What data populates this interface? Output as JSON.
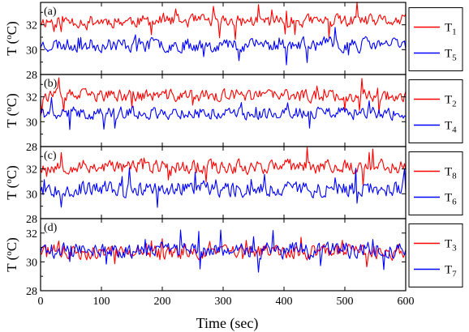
{
  "chart_data": {
    "type": "line",
    "xlabel": "Time (sec)",
    "x_ticks": [
      0,
      100,
      200,
      300,
      400,
      500,
      600
    ],
    "xlim": [
      0,
      600
    ],
    "x_step": 2,
    "grid": false,
    "legend_placement": "right",
    "panels": [
      {
        "label": "(a)",
        "ylabel_main": "T (",
        "ylabel_sup": "o",
        "ylabel_end": "C)",
        "ylim": [
          28,
          33.8
        ],
        "y_ticks": [
          28,
          30,
          32
        ],
        "series": [
          {
            "name": "T",
            "sub": "1",
            "color": "#ff0000",
            "base": 32.3,
            "amp": 0.45,
            "seed": 11
          },
          {
            "name": "T",
            "sub": "5",
            "color": "#0000ff",
            "base": 30.4,
            "amp": 0.5,
            "seed": 23
          }
        ]
      },
      {
        "label": "(b)",
        "ylabel_main": "T (",
        "ylabel_sup": "o",
        "ylabel_end": "C)",
        "ylim": [
          28,
          33.8
        ],
        "y_ticks": [
          28,
          30,
          32
        ],
        "series": [
          {
            "name": "T",
            "sub": "2",
            "color": "#ff0000",
            "base": 32.1,
            "amp": 0.45,
            "seed": 37
          },
          {
            "name": "T",
            "sub": "4",
            "color": "#0000ff",
            "base": 30.7,
            "amp": 0.45,
            "seed": 41
          }
        ]
      },
      {
        "label": "(c)",
        "ylabel_main": "T (",
        "ylabel_sup": "o",
        "ylabel_end": "C)",
        "ylim": [
          28,
          33.8
        ],
        "y_ticks": [
          28,
          30,
          32
        ],
        "series": [
          {
            "name": "T",
            "sub": "8",
            "color": "#ff0000",
            "base": 32.2,
            "amp": 0.5,
            "seed": 53
          },
          {
            "name": "T",
            "sub": "6",
            "color": "#0000ff",
            "base": 30.4,
            "amp": 0.55,
            "seed": 67
          }
        ]
      },
      {
        "label": "(d)",
        "ylabel_main": "T (",
        "ylabel_sup": "o",
        "ylabel_end": "C)",
        "ylim": [
          28,
          33.0
        ],
        "y_ticks": [
          28,
          30,
          32
        ],
        "series": [
          {
            "name": "T",
            "sub": "3",
            "color": "#ff0000",
            "base": 30.7,
            "amp": 0.45,
            "seed": 71
          },
          {
            "name": "T",
            "sub": "7",
            "color": "#0000ff",
            "base": 30.8,
            "amp": 0.5,
            "seed": 89
          }
        ]
      }
    ]
  }
}
